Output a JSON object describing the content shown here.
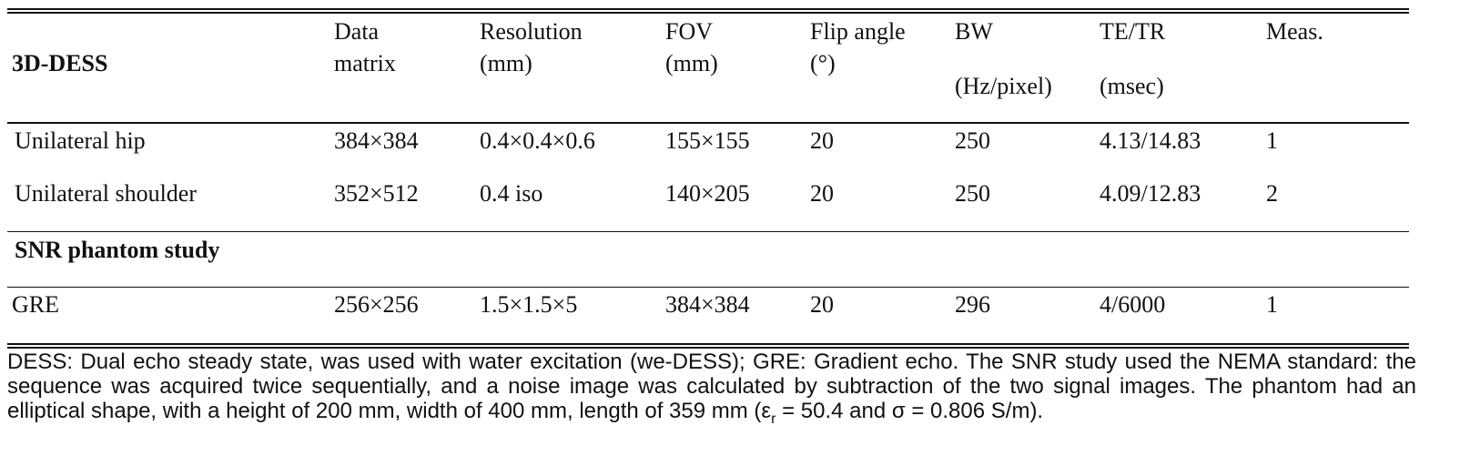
{
  "table": {
    "header": [
      [
        "3D-DESS"
      ],
      [
        "Data",
        "matrix"
      ],
      [
        "Resolution",
        "(mm)"
      ],
      [
        "FOV",
        "(mm)"
      ],
      [
        "Flip angle",
        "(°)"
      ],
      [
        "BW",
        "(Hz/pixel)"
      ],
      [
        "TE/TR",
        "(msec)"
      ],
      [
        "Meas."
      ]
    ],
    "rows": [
      [
        "Unilateral hip",
        "384×384",
        "0.4×0.4×0.6",
        "155×155",
        "20",
        "250",
        "4.13/14.83",
        "1"
      ],
      [
        "Unilateral shoulder",
        "352×512",
        "0.4 iso",
        "140×205",
        "20",
        "250",
        "4.09/12.83",
        "2"
      ]
    ],
    "section": "SNR phantom study",
    "section_rows": [
      [
        "GRE",
        "256×256",
        "1.5×1.5×5",
        "384×384",
        "20",
        "296",
        "4/6000",
        "1"
      ]
    ]
  },
  "footnote": {
    "text": "DESS: Dual echo steady state, was used with water excitation (we-DESS); GRE: Gradient echo.  The SNR study used the NEMA standard: the sequence was acquired twice sequentially, and a noise image was calculated by subtraction of the two signal images. The phantom had an elliptical shape, with a height of 200 mm, width of 400 mm, length of 359 mm (ε",
    "subscript": "r",
    "tail": " = 50.4 and σ = 0.806 S/m)."
  }
}
